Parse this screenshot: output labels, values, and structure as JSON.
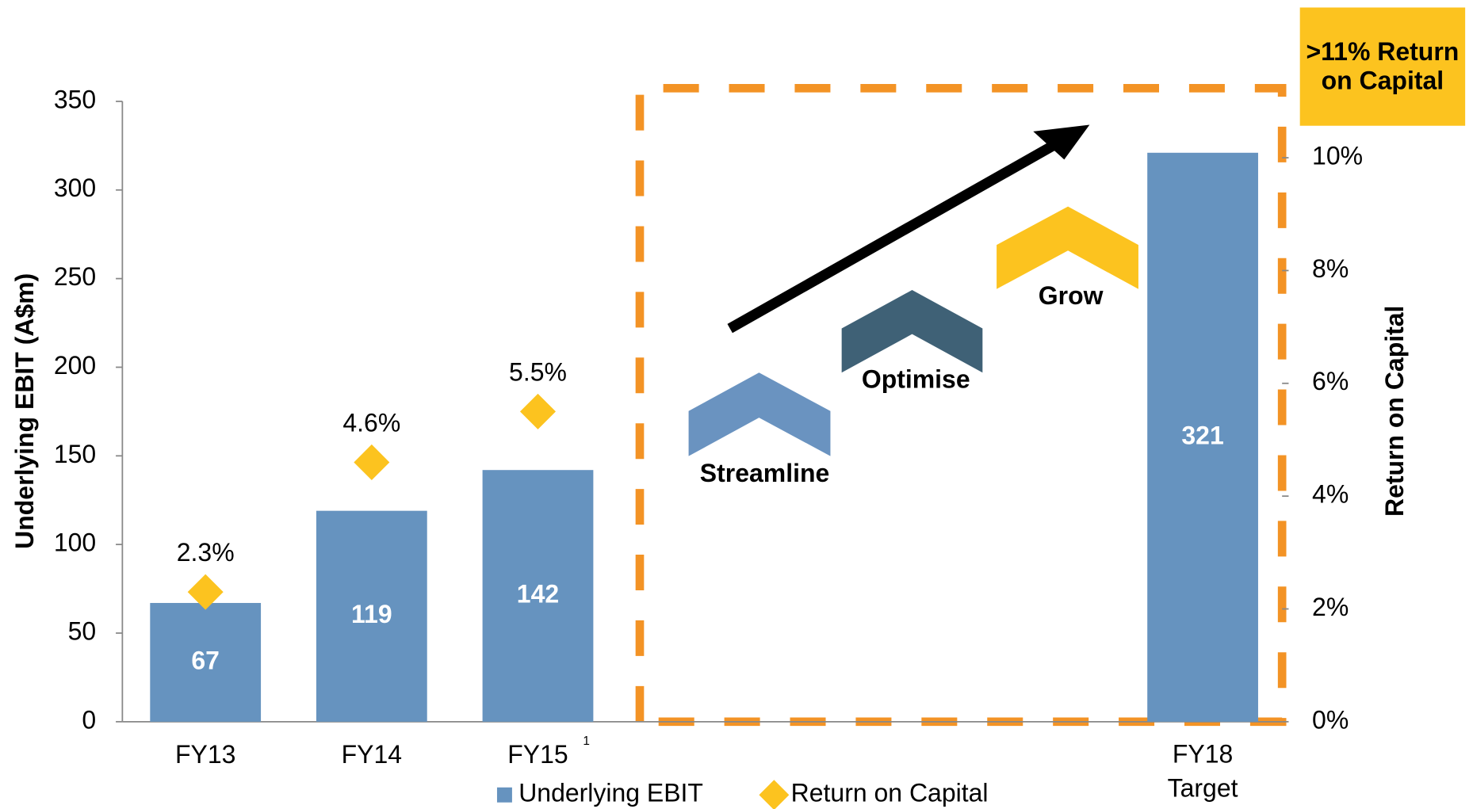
{
  "chart_data": {
    "type": "bar",
    "categories": [
      "FY13",
      "FY14",
      "FY15",
      null,
      null,
      null,
      "FY18 Target"
    ],
    "category_note": "1",
    "series": [
      {
        "name": "Underlying EBIT",
        "color": "#6693bf",
        "values": [
          67,
          119,
          142,
          null,
          null,
          null,
          321
        ]
      },
      {
        "name": "Return on Capital",
        "color": "#fcc31f",
        "axis": "y2",
        "type": "scatter",
        "values": [
          2.3,
          4.6,
          5.5,
          null,
          null,
          null,
          null
        ],
        "value_labels": [
          "2.3%",
          "4.6%",
          "5.5%",
          null,
          null,
          null,
          null
        ]
      }
    ],
    "ylabel": "Underlying EBIT (A$m)",
    "y2label": "Return on Capital",
    "ylim": [
      0,
      350
    ],
    "yticks": [
      0,
      50,
      100,
      150,
      200,
      250,
      300,
      350
    ],
    "y2lim": [
      0,
      11
    ],
    "y2ticks": [
      {
        "value": 0,
        "label": "0%"
      },
      {
        "value": 2,
        "label": "2%"
      },
      {
        "value": 4,
        "label": "4%"
      },
      {
        "value": 6,
        "label": "6%"
      },
      {
        "value": 8,
        "label": "8%"
      },
      {
        "value": 10,
        "label": "10%"
      }
    ],
    "annotations": [
      ">11% Return on Capital",
      "Streamline",
      "Optimise",
      "Grow"
    ],
    "legend": "bottom"
  }
}
